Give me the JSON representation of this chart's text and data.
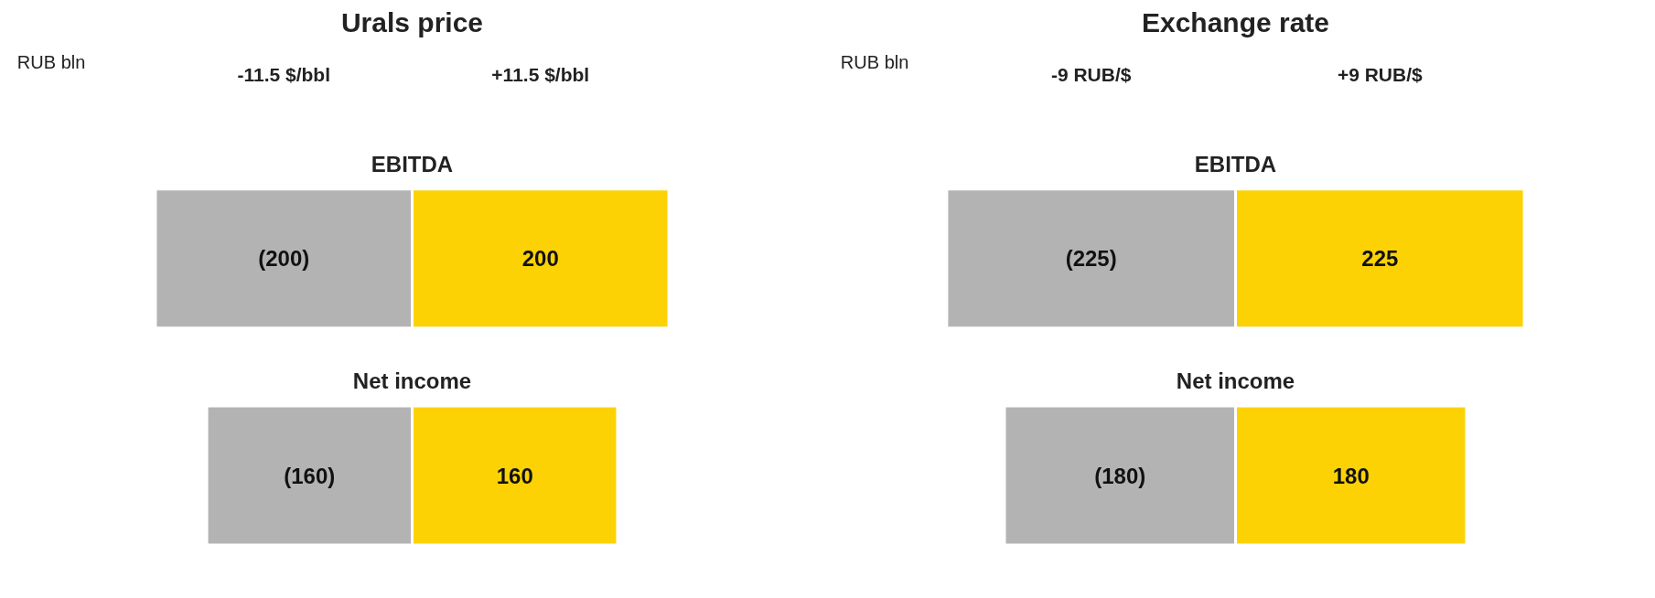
{
  "chart_data": [
    {
      "type": "bar",
      "orientation": "horizontal",
      "title": "Urals price",
      "ylabel": "RUB bln",
      "stacked": true,
      "categories": [
        "EBITDA",
        "Net income"
      ],
      "tick_labels": false,
      "annotations": [
        "-11.5 $/bbl",
        "+11.5 $/bbl"
      ],
      "series": [
        {
          "color": "#b3b3b3",
          "values": [
            -200,
            -160
          ],
          "value_labels": [
            "(200)",
            "(160)"
          ]
        },
        {
          "color": "#fcd205",
          "values": [
            200,
            160
          ],
          "value_labels": [
            "200",
            "160"
          ]
        }
      ]
    },
    {
      "type": "bar",
      "orientation": "horizontal",
      "title": "Exchange rate",
      "ylabel": "RUB bln",
      "stacked": true,
      "categories": [
        "EBITDA",
        "Net income"
      ],
      "tick_labels": false,
      "annotations": [
        "-9 RUB/$",
        "+9 RUB/$"
      ],
      "series": [
        {
          "color": "#b3b3b3",
          "values": [
            -225,
            -180
          ],
          "value_labels": [
            "(225)",
            "(180)"
          ]
        },
        {
          "color": "#fcd205",
          "values": [
            225,
            180
          ],
          "value_labels": [
            "225",
            "180"
          ]
        }
      ]
    }
  ]
}
